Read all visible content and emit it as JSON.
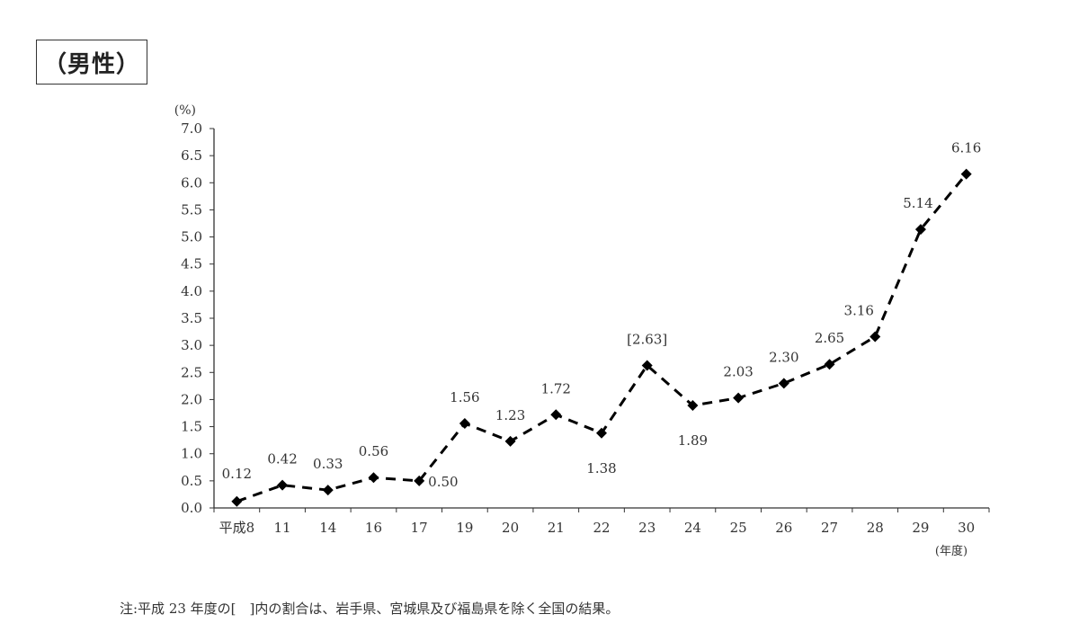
{
  "title": "（男性）",
  "note": "注:平成 23 年度の[　]内の割合は、岩手県、宮城県及び福島県を除く全国の結果。",
  "chart_data": {
    "type": "line",
    "ylabel": "(%)",
    "xlabel": "(年度)",
    "ylim": [
      0,
      7.0
    ],
    "yticks": [
      "0.0",
      "0.5",
      "1.0",
      "1.5",
      "2.0",
      "2.5",
      "3.0",
      "3.5",
      "4.0",
      "4.5",
      "5.0",
      "5.5",
      "6.0",
      "6.5",
      "7.0"
    ],
    "categories": [
      "平成8",
      "11",
      "14",
      "16",
      "17",
      "19",
      "20",
      "21",
      "22",
      "23",
      "24",
      "25",
      "26",
      "27",
      "28",
      "29",
      "30"
    ],
    "values": [
      0.12,
      0.42,
      0.33,
      0.56,
      0.5,
      1.56,
      1.23,
      1.72,
      1.38,
      2.63,
      1.89,
      2.03,
      2.3,
      2.65,
      3.16,
      5.14,
      6.16
    ],
    "labels": [
      "0.12",
      "0.42",
      "0.33",
      "0.56",
      "0.50",
      "1.56",
      "1.23",
      "1.72",
      "1.38",
      "[2.63]",
      "1.89",
      "2.03",
      "2.30",
      "2.65",
      "3.16",
      "5.14",
      "6.16"
    ],
    "line_style": "dashed",
    "marker": "diamond",
    "color": "#000000",
    "grid": false
  }
}
